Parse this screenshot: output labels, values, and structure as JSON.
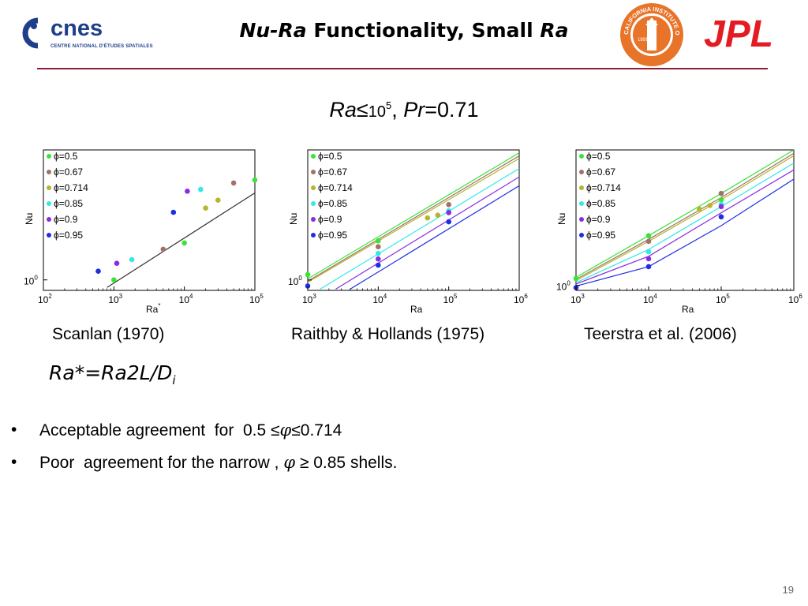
{
  "header": {
    "title_nu_ra": "Nu-Ra",
    "title_mid": " Functionality, Small ",
    "title_ra": "Ra",
    "cnes_logo_text": "cnes",
    "cnes_tagline": "CENTRE NATIONAL D'ÉTUDES SPATIALES",
    "jpl_logo_text": "JPL",
    "caltech_seal_text": "CALIFORNIA INSTITUTE OF TECHNOLOGY",
    "caltech_seal_year": "1891"
  },
  "subtitle": {
    "ra": "Ra",
    "le": "≤",
    "base": "10",
    "exp": "5",
    "sep": ", ",
    "pr": "Pr",
    "pr_value": "=0.71"
  },
  "colors": {
    "accent_rule": "#8a1f35",
    "phi_0_5": "#39e339",
    "phi_0_67": "#a0706a",
    "phi_0_714": "#b5b52e",
    "phi_0_85": "#34e8e8",
    "phi_0_9": "#8a2be2",
    "phi_0_95": "#1f2fe0"
  },
  "captions": [
    "Scanlan (1970)",
    "Raithby & Hollands (1975)",
    "Teerstra et al. (2006)"
  ],
  "formula": {
    "main": "Ra*=Ra2L/D",
    "sub": "i"
  },
  "bullets": [
    {
      "marker": "•",
      "pre": "Acceptable agreement  for  0.5 ≤",
      "phi": "φ",
      "post": "≤0.714"
    },
    {
      "marker": "•",
      "pre": "Poor  agreement for the narrow , ",
      "phi": "φ",
      "post": " ≥ 0.85 shells."
    }
  ],
  "page_number": "19",
  "chart_data": [
    {
      "type": "scatter",
      "x_scale": "log",
      "y_scale": "log",
      "xlim": [
        100,
        100000
      ],
      "xticks": [
        {
          "base": "10",
          "exp": "2"
        },
        {
          "base": "10",
          "exp": "3"
        },
        {
          "base": "10",
          "exp": "4"
        },
        {
          "base": "10",
          "exp": "5"
        }
      ],
      "xlabel": "Ra",
      "xlabel_sup": "*",
      "ylabel": "Nu",
      "yticks": [
        {
          "base": "10",
          "exp": "0"
        }
      ],
      "legend_position": "top-left",
      "series": [
        {
          "name": "ϕ=0.5",
          "color": "#39e339",
          "points": [
            [
              1000,
              1.0
            ],
            [
              10000,
              1.5
            ],
            [
              100000,
              3.0
            ]
          ]
        },
        {
          "name": "ϕ=0.67",
          "color": "#a0706a",
          "points": [
            [
              5000,
              1.4
            ],
            [
              50000,
              2.9
            ]
          ]
        },
        {
          "name": "ϕ=0.714",
          "color": "#b5b52e",
          "points": [
            [
              20000,
              2.2
            ],
            [
              30000,
              2.4
            ]
          ]
        },
        {
          "name": "ϕ=0.85",
          "color": "#34e8e8",
          "points": [
            [
              1800,
              1.25
            ],
            [
              17000,
              2.7
            ]
          ]
        },
        {
          "name": "ϕ=0.9",
          "color": "#8a2be2",
          "points": [
            [
              1100,
              1.2
            ],
            [
              11000,
              2.65
            ]
          ]
        },
        {
          "name": "ϕ=0.95",
          "color": "#1f2fe0",
          "points": [
            [
              600,
              1.1
            ],
            [
              7000,
              2.1
            ]
          ]
        }
      ],
      "lines": [
        {
          "color": "#333333",
          "points": [
            [
              800,
              0.92
            ],
            [
              100000,
              2.6
            ]
          ]
        }
      ]
    },
    {
      "type": "scatter",
      "x_scale": "log",
      "y_scale": "log",
      "xlim": [
        1000,
        1000000
      ],
      "xticks": [
        {
          "base": "10",
          "exp": "3"
        },
        {
          "base": "10",
          "exp": "4"
        },
        {
          "base": "10",
          "exp": "5"
        },
        {
          "base": "10",
          "exp": "6"
        }
      ],
      "xlabel": "Ra",
      "xlabel_sup": "",
      "ylabel": "Nu",
      "yticks": [
        {
          "base": "10",
          "exp": "0"
        }
      ],
      "legend_position": "top-left",
      "series": [
        {
          "name": "ϕ=0.5",
          "color": "#39e339",
          "points": [
            [
              1000,
              1.1
            ],
            [
              10000,
              2.0
            ],
            [
              100000,
              3.3
            ]
          ]
        },
        {
          "name": "ϕ=0.67",
          "color": "#a0706a",
          "points": [
            [
              10000,
              1.8
            ],
            [
              100000,
              3.8
            ]
          ]
        },
        {
          "name": "ϕ=0.714",
          "color": "#b5b52e",
          "points": [
            [
              50000,
              3.0
            ],
            [
              70000,
              3.15
            ]
          ]
        },
        {
          "name": "ϕ=0.85",
          "color": "#34e8e8",
          "points": [
            [
              10000,
              1.6
            ],
            [
              100000,
              3.4
            ]
          ]
        },
        {
          "name": "ϕ=0.9",
          "color": "#8a2be2",
          "points": [
            [
              10000,
              1.45
            ],
            [
              100000,
              3.3
            ]
          ]
        },
        {
          "name": "ϕ=0.95",
          "color": "#1f2fe0",
          "points": [
            [
              1000,
              0.9
            ],
            [
              10000,
              1.3
            ],
            [
              100000,
              2.8
            ]
          ]
        }
      ],
      "lines": [
        {
          "color": "#39e339",
          "points": [
            [
              1000,
              1.02
            ],
            [
              1000000,
              9.5
            ]
          ]
        },
        {
          "color": "#a0706a",
          "points": [
            [
              1000,
              0.98
            ],
            [
              1000000,
              9.0
            ]
          ]
        },
        {
          "color": "#b5b52e",
          "points": [
            [
              1000,
              0.96
            ],
            [
              1000000,
              8.6
            ]
          ]
        },
        {
          "color": "#34e8e8",
          "points": [
            [
              1500,
              0.85
            ],
            [
              1000000,
              7.2
            ]
          ]
        },
        {
          "color": "#8a2be2",
          "points": [
            [
              2500,
              0.85
            ],
            [
              1000000,
              6.2
            ]
          ]
        },
        {
          "color": "#1f2fe0",
          "points": [
            [
              4000,
              0.85
            ],
            [
              1000000,
              5.3
            ]
          ]
        }
      ]
    },
    {
      "type": "scatter",
      "x_scale": "log",
      "y_scale": "log",
      "xlim": [
        1000,
        1000000
      ],
      "xticks": [
        {
          "base": "10",
          "exp": "3"
        },
        {
          "base": "10",
          "exp": "4"
        },
        {
          "base": "10",
          "exp": "5"
        },
        {
          "base": "10",
          "exp": "6"
        }
      ],
      "xlabel": "Ra",
      "xlabel_sup": "",
      "ylabel": "Nu",
      "yticks": [
        {
          "base": "10",
          "exp": "0"
        }
      ],
      "legend_position": "top-left",
      "series": [
        {
          "name": "ϕ=0.5",
          "color": "#39e339",
          "points": [
            [
              1000,
              1.1
            ],
            [
              10000,
              2.0
            ],
            [
              100000,
              3.3
            ]
          ]
        },
        {
          "name": "ϕ=0.67",
          "color": "#a0706a",
          "points": [
            [
              10000,
              1.85
            ],
            [
              100000,
              3.6
            ]
          ]
        },
        {
          "name": "ϕ=0.714",
          "color": "#b5b52e",
          "points": [
            [
              50000,
              2.9
            ],
            [
              70000,
              3.05
            ]
          ]
        },
        {
          "name": "ϕ=0.85",
          "color": "#34e8e8",
          "points": [
            [
              10000,
              1.6
            ],
            [
              100000,
              3.1
            ]
          ]
        },
        {
          "name": "ϕ=0.9",
          "color": "#8a2be2",
          "points": [
            [
              10000,
              1.45
            ],
            [
              100000,
              3.0
            ]
          ]
        },
        {
          "name": "ϕ=0.95",
          "color": "#1f2fe0",
          "points": [
            [
              1000,
              0.97
            ],
            [
              10000,
              1.3
            ],
            [
              100000,
              2.6
            ]
          ]
        }
      ],
      "lines": [
        {
          "color": "#39e339",
          "points": [
            [
              1000,
              1.12
            ],
            [
              10000,
              2.0
            ],
            [
              100000,
              3.6
            ],
            [
              1000000,
              6.6
            ]
          ]
        },
        {
          "color": "#a0706a",
          "points": [
            [
              1000,
              1.09
            ],
            [
              10000,
              1.9
            ],
            [
              100000,
              3.4
            ],
            [
              1000000,
              6.3
            ]
          ]
        },
        {
          "color": "#b5b52e",
          "points": [
            [
              1000,
              1.07
            ],
            [
              10000,
              1.85
            ],
            [
              100000,
              3.3
            ],
            [
              1000000,
              6.1
            ]
          ]
        },
        {
          "color": "#34e8e8",
          "points": [
            [
              1000,
              1.04
            ],
            [
              10000,
              1.65
            ],
            [
              100000,
              3.0
            ],
            [
              1000000,
              5.5
            ]
          ]
        },
        {
          "color": "#8a2be2",
          "points": [
            [
              1000,
              1.02
            ],
            [
              10000,
              1.5
            ],
            [
              100000,
              2.75
            ],
            [
              1000000,
              5.0
            ]
          ]
        },
        {
          "color": "#1f2fe0",
          "points": [
            [
              1000,
              0.99
            ],
            [
              10000,
              1.3
            ],
            [
              100000,
              2.3
            ],
            [
              1000000,
              4.4
            ]
          ]
        }
      ]
    }
  ]
}
